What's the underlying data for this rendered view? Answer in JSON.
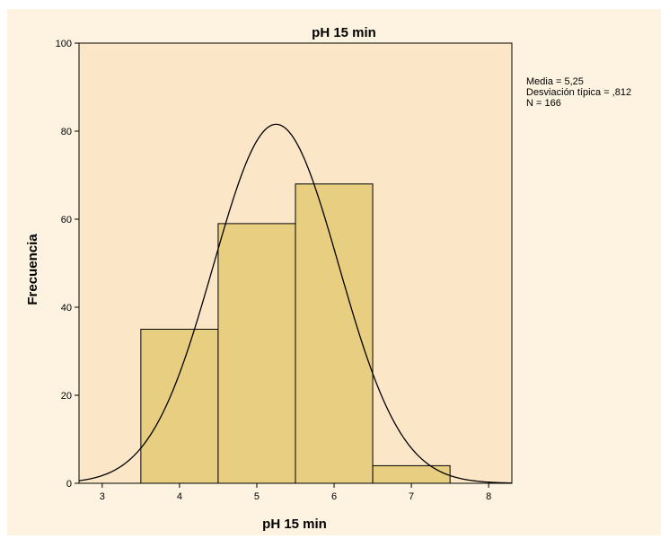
{
  "chart_data": {
    "type": "histogram",
    "title": "pH 15 min",
    "xlabel": "pH 15 min",
    "ylabel": "Frecuencia",
    "xlim": [
      2.7,
      8.3
    ],
    "ylim": [
      0,
      100
    ],
    "x_ticks": [
      "3",
      "4",
      "5",
      "6",
      "7",
      "8"
    ],
    "y_ticks": [
      "0",
      "20",
      "40",
      "60",
      "80",
      "100"
    ],
    "bins": [
      {
        "start": 3.5,
        "end": 4.5,
        "count": 35
      },
      {
        "start": 4.5,
        "end": 5.5,
        "count": 59
      },
      {
        "start": 5.5,
        "end": 6.5,
        "count": 68
      },
      {
        "start": 6.5,
        "end": 7.5,
        "count": 4
      }
    ],
    "normal_curve": {
      "mean": 5.25,
      "sd": 0.812,
      "n": 166,
      "bin_width": 1
    },
    "stats": {
      "mean_label": "Media = 5,25",
      "sd_label": "Desviación típica = ,812",
      "n_label": "N = 166"
    },
    "colors": {
      "bar_fill": "#e8ce80",
      "plot_bg": "#fbe7c8",
      "outer_bg": "#fdf3e0",
      "line": "#000000"
    },
    "grid": false
  }
}
